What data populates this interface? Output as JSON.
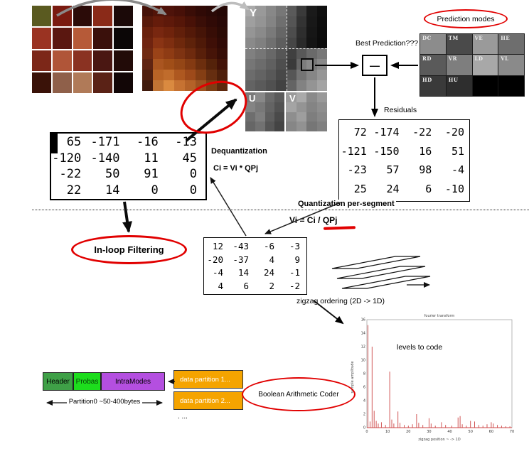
{
  "labels": {
    "prediction_modes": "Prediction modes",
    "best_prediction": "Best Prediction???",
    "minus_sign": "—",
    "residuals": "Residuals",
    "dequantization": "Dequantization",
    "dequant_formula": "Ci = Vi * QPj",
    "quantization": "Quantization per-segment",
    "quant_formula_pre": "Vi = Ci / ",
    "quant_formula_qp": "QPj",
    "inloop_filtering": "In-loop Filtering",
    "zigzag_ordering": "zigzag ordering  (2D -> 1D)",
    "boolean_coder": "Boolean Arithmetic Coder"
  },
  "planes": {
    "y": "Y",
    "u": "U",
    "v": "V"
  },
  "source_image": {
    "grid": [
      [
        "#5a5a20",
        "#7a1b10",
        "#2b0b08",
        "#8a2a18",
        "#1b0908"
      ],
      [
        "#9a3322",
        "#5a1710",
        "#b65a38",
        "#3a100b",
        "#0b0606"
      ],
      [
        "#7c2718",
        "#b05538",
        "#8a3222",
        "#4a1712",
        "#220b08"
      ],
      [
        "#3a1208",
        "#8f604a",
        "#b07a58",
        "#5a2216",
        "#120606"
      ]
    ]
  },
  "pixelated": {
    "grid": [
      [
        "#451108",
        "#521408",
        "#4e130a",
        "#471008",
        "#3a0d07",
        "#300a06",
        "#2a0906",
        "#240705"
      ],
      [
        "#58190a",
        "#651c0b",
        "#5e190a",
        "#551608",
        "#481107",
        "#3a0e07",
        "#300a06",
        "#280806"
      ],
      [
        "#69200c",
        "#782710",
        "#6f230c",
        "#611f0a",
        "#531908",
        "#451407",
        "#370d06",
        "#2b0a05"
      ],
      [
        "#6f2410",
        "#8a3414",
        "#7e2e10",
        "#6e280c",
        "#5e220a",
        "#4e1908",
        "#3e0f07",
        "#300a06"
      ],
      [
        "#702a12",
        "#9a4318",
        "#8e3b14",
        "#7e3312",
        "#6e2a0e",
        "#581f0a",
        "#461408",
        "#360d06"
      ],
      [
        "#602412",
        "#aa5520",
        "#a04e18",
        "#944616",
        "#843a12",
        "#6c2e0e",
        "#54220a",
        "#421207"
      ],
      [
        "#50200e",
        "#b86426",
        "#c06c2c",
        "#ae5820",
        "#9e4a1a",
        "#843e14",
        "#662e10",
        "#4e1f0a"
      ],
      [
        "#401a0c",
        "#c07434",
        "#da8a40",
        "#c67232",
        "#b46228",
        "#9c5220",
        "#7c3e14",
        "#5e280d"
      ]
    ]
  },
  "y_plane": {
    "grid": [
      [
        "#aaaaaa",
        "#999999",
        "#888888",
        "#777777",
        "#5a5a5a",
        "#3a3a3a",
        "#1a1a1a",
        "#0f0f0f"
      ],
      [
        "#9f9f9f",
        "#949494",
        "#848484",
        "#6f6f6f",
        "#555555",
        "#333333",
        "#181818",
        "#0d0d0d"
      ],
      [
        "#959595",
        "#8a8a8a",
        "#7a7a7a",
        "#666666",
        "#4d4d4d",
        "#2e2e2e",
        "#161616",
        "#0c0c0c"
      ],
      [
        "#8a8a8a",
        "#808080",
        "#707070",
        "#5e5e5e",
        "#464646",
        "#2a2a2a",
        "#141414",
        "#0b0b0b"
      ],
      [
        "#808080",
        "#767676",
        "#686868",
        "#565656",
        "#404040",
        "#585858",
        "#6a6a6a",
        "#777777"
      ],
      [
        "#767676",
        "#6c6c6c",
        "#606060",
        "#4e4e4e",
        "#3a3a3a",
        "#666666",
        "#787878",
        "#888888"
      ],
      [
        "#6c6c6c",
        "#636363",
        "#585858",
        "#484848",
        "#565656",
        "#747474",
        "#868686",
        "#969696"
      ],
      [
        "#636363",
        "#5a5a5a",
        "#505050",
        "#424242",
        "#646464",
        "#828282",
        "#949494",
        "#a4a4a4"
      ]
    ]
  },
  "u_plane": {
    "grid": [
      [
        "#7a7a7a",
        "#888888",
        "#6a6a6a",
        "#5a5a5a"
      ],
      [
        "#848484",
        "#787878",
        "#646464",
        "#525252"
      ],
      [
        "#6e6e6e",
        "#7e7e7e",
        "#5e5e5e",
        "#4a4a4a"
      ],
      [
        "#666666",
        "#727272",
        "#565656",
        "#444444"
      ]
    ]
  },
  "v_plane": {
    "grid": [
      [
        "#9a9a9a",
        "#aaaaaa",
        "#8a8a8a",
        "#999999"
      ],
      [
        "#a4a4a4",
        "#949494",
        "#848484",
        "#8e8e8e"
      ],
      [
        "#8e8e8e",
        "#9e9e9e",
        "#7e7e7e",
        "#888888"
      ],
      [
        "#868686",
        "#929292",
        "#767676",
        "#808080"
      ]
    ]
  },
  "prediction": {
    "modes": [
      {
        "label": "DC",
        "color": "#8c8c8c"
      },
      {
        "label": "TM",
        "color": "#4a4a4a"
      },
      {
        "label": "VE",
        "color": "#9a9a9a"
      },
      {
        "label": "HE",
        "color": "#6e6e6e"
      },
      {
        "label": "RD",
        "color": "#5a5a5a"
      },
      {
        "label": "VR",
        "color": "#7e7e7e"
      },
      {
        "label": "LD",
        "color": "#a8a8a8"
      },
      {
        "label": "VL",
        "color": "#8a8a8a"
      },
      {
        "label": "HD",
        "color": "#3a3a3a"
      },
      {
        "label": "HU",
        "color": "#2e2e2e"
      },
      {
        "label": "",
        "color": "#000000"
      },
      {
        "label": "",
        "color": "#000000"
      }
    ]
  },
  "residuals_matrix": {
    "rows": [
      [
        "72",
        "-174",
        "-22",
        "-20"
      ],
      [
        "-121",
        "-150",
        "16",
        "51"
      ],
      [
        "-23",
        "57",
        "98",
        "-4"
      ],
      [
        "25",
        "24",
        "6",
        "-10"
      ]
    ]
  },
  "dequantized_matrix": {
    "rows": [
      [
        "65",
        "-171",
        "-16",
        "-13"
      ],
      [
        "-120",
        "-140",
        "11",
        "45"
      ],
      [
        "-22",
        "50",
        "91",
        "0"
      ],
      [
        "22",
        "14",
        "0",
        "0"
      ]
    ]
  },
  "quantized_matrix": {
    "rows": [
      [
        "12",
        "-43",
        "-6",
        "-3"
      ],
      [
        "-20",
        "-37",
        "4",
        "9"
      ],
      [
        "-4",
        "14",
        "24",
        "-1"
      ],
      [
        "4",
        "6",
        "2",
        "-2"
      ]
    ]
  },
  "bitstream": {
    "header": "Header",
    "probas": "Probas",
    "intramodes": "IntraModes",
    "partition0": "Partition0  ~50-400bytes",
    "dp1": "data partition 1...",
    "dp2": "data partition 2...",
    "more": ". ..."
  },
  "chart_data": {
    "type": "stem",
    "title": "fourier transform",
    "inner_label": "levels to code",
    "xlabel": "zigzag position  ~ -> 1D",
    "ylabel": "sample amplitude",
    "series_color": "#cc4444",
    "xlim": [
      0,
      70
    ],
    "ylim": [
      0,
      16
    ],
    "xticks": [
      0,
      10,
      20,
      30,
      40,
      50,
      60,
      70
    ],
    "yticks": [
      0,
      2,
      4,
      6,
      8,
      10,
      12,
      14,
      16
    ],
    "spikes": [
      [
        0.5,
        15.2
      ],
      [
        1.5,
        0.9
      ],
      [
        2.5,
        12.0
      ],
      [
        3.5,
        2.5
      ],
      [
        4.5,
        1.0
      ],
      [
        5.5,
        0.6
      ],
      [
        7,
        0.8
      ],
      [
        9,
        0.4
      ],
      [
        11,
        8.3
      ],
      [
        12,
        1.2
      ],
      [
        13,
        0.6
      ],
      [
        15,
        2.4
      ],
      [
        16,
        0.7
      ],
      [
        18,
        0.4
      ],
      [
        20,
        0.3
      ],
      [
        22,
        0.5
      ],
      [
        24,
        2.0
      ],
      [
        25,
        0.7
      ],
      [
        27,
        0.4
      ],
      [
        30,
        1.4
      ],
      [
        31,
        0.6
      ],
      [
        33,
        0.3
      ],
      [
        36,
        0.8
      ],
      [
        38,
        0.4
      ],
      [
        41,
        0.3
      ],
      [
        44,
        1.5
      ],
      [
        45,
        1.7
      ],
      [
        46,
        0.5
      ],
      [
        48,
        0.3
      ],
      [
        50,
        1.0
      ],
      [
        52,
        0.9
      ],
      [
        54,
        0.4
      ],
      [
        56,
        0.3
      ],
      [
        58,
        0.5
      ],
      [
        60,
        0.8
      ],
      [
        61,
        0.6
      ],
      [
        63,
        0.4
      ],
      [
        65,
        0.3
      ],
      [
        67,
        0.2
      ],
      [
        69,
        0.2
      ]
    ]
  }
}
